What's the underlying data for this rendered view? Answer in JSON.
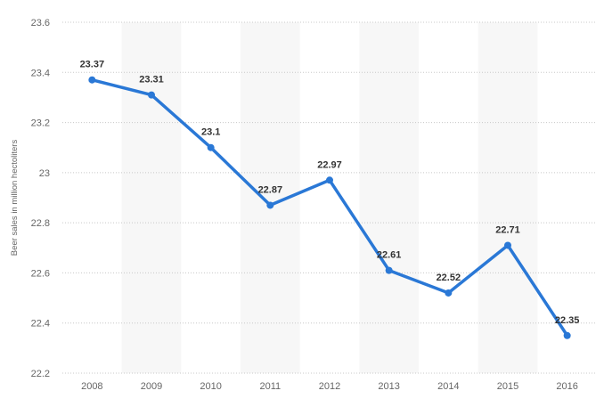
{
  "chart_data": {
    "type": "line",
    "x": [
      "2008",
      "2009",
      "2010",
      "2011",
      "2012",
      "2013",
      "2014",
      "2015",
      "2016"
    ],
    "series": [
      {
        "values": [
          23.37,
          23.31,
          23.1,
          22.87,
          22.97,
          22.61,
          22.52,
          22.71,
          22.35
        ]
      }
    ],
    "data_labels": [
      "23.37",
      "23.31",
      "23.1",
      "22.87",
      "22.97",
      "22.61",
      "22.52",
      "22.71",
      "22.35"
    ],
    "ylabel": "Beer sales in million hectoliters",
    "xlabel": "",
    "ylim": [
      22.2,
      23.6
    ],
    "yticks": [
      22.2,
      22.4,
      22.6,
      22.8,
      23,
      23.2,
      23.4,
      23.6
    ],
    "ytick_labels": [
      "22.2",
      "22.4",
      "22.6",
      "22.8",
      "23",
      "23.2",
      "23.4",
      "23.6"
    ],
    "grid": "horizontal dotted",
    "alternating_column_bands": true,
    "legend": "none",
    "colors": {
      "line": "#2a78d6",
      "band": "#f7f7f7",
      "grid": "#c8c8c8"
    }
  }
}
